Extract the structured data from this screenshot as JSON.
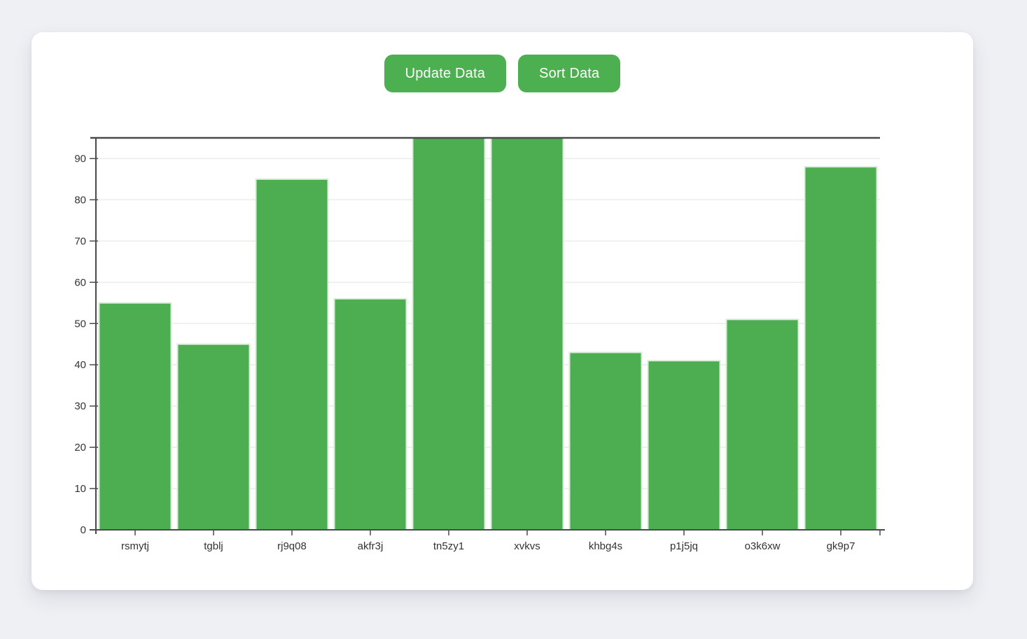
{
  "page": {
    "background_color": "#eff0f4",
    "card_color": "#ffffff"
  },
  "toolbar": {
    "update_label": "Update Data",
    "sort_label": "Sort Data",
    "button_color": "#4caf50",
    "button_text_color": "#ffffff"
  },
  "chart_data": {
    "type": "bar",
    "categories": [
      "rsmytj",
      "tgblj",
      "rj9q08",
      "akfr3j",
      "tn5zy1",
      "xvkvs",
      "khbg4s",
      "p1j5jq",
      "o3k6xw",
      "gk9p7"
    ],
    "values": [
      55,
      45,
      85,
      56,
      95,
      95,
      43,
      41,
      51,
      88
    ],
    "title": "",
    "xlabel": "",
    "ylabel": "",
    "ylim": [
      0,
      95
    ],
    "y_ticks": [
      0,
      10,
      20,
      30,
      40,
      50,
      60,
      70,
      80,
      90
    ],
    "grid": true,
    "legend": "none",
    "bar_color": "#4cae51",
    "bar_edge_color": "#d9eeda",
    "axis_color": "#4a4a4a",
    "grid_color": "#ebebeb",
    "tick_label_color": "#333333"
  }
}
